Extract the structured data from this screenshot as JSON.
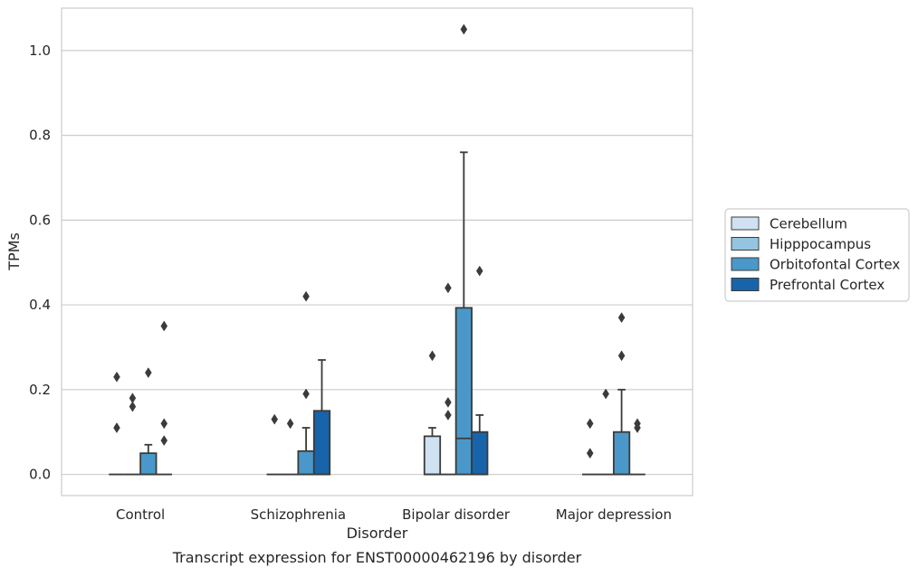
{
  "chart_data": {
    "type": "box",
    "title": "",
    "caption": "Transcript expression for ENST00000462196 by disorder",
    "xlabel": "Disorder",
    "ylabel": "TPMs",
    "ylim": [
      -0.05,
      1.1
    ],
    "yticks": [
      0.0,
      0.2,
      0.4,
      0.6,
      0.8,
      1.0
    ],
    "ytick_labels": [
      "0.0",
      "0.2",
      "0.4",
      "0.6",
      "0.8",
      "1.0"
    ],
    "grid": true,
    "legend_position": "right",
    "categories": [
      "Control",
      "Schizophrenia",
      "Bipolar disorder",
      "Major depression"
    ],
    "series": [
      {
        "name": "Cerebellum",
        "color": "#d0e1f2",
        "boxes": [
          {
            "q1": 0,
            "median": 0,
            "q3": 0,
            "whisker_low": 0,
            "whisker_high": 0,
            "outliers": [
              0.23,
              0.11
            ]
          },
          {
            "q1": 0,
            "median": 0,
            "q3": 0,
            "whisker_low": 0,
            "whisker_high": 0,
            "outliers": [
              0.13
            ]
          },
          {
            "q1": 0,
            "median": 0,
            "q3": 0.09,
            "whisker_low": 0,
            "whisker_high": 0.11,
            "outliers": [
              0.28
            ]
          },
          {
            "q1": 0,
            "median": 0,
            "q3": 0,
            "whisker_low": 0,
            "whisker_high": 0,
            "outliers": [
              0.12,
              0.05
            ]
          }
        ]
      },
      {
        "name": "Hipppocampus",
        "color": "#94c4df",
        "boxes": [
          {
            "q1": 0,
            "median": 0,
            "q3": 0,
            "whisker_low": 0,
            "whisker_high": 0,
            "outliers": [
              0.18,
              0.16
            ]
          },
          {
            "q1": 0,
            "median": 0,
            "q3": 0,
            "whisker_low": 0,
            "whisker_high": 0,
            "outliers": [
              0.12
            ]
          },
          {
            "q1": 0,
            "median": 0,
            "q3": 0,
            "whisker_low": 0,
            "whisker_high": 0,
            "outliers": [
              0.44,
              0.17,
              0.14
            ]
          },
          {
            "q1": 0,
            "median": 0,
            "q3": 0,
            "whisker_low": 0,
            "whisker_high": 0,
            "outliers": [
              0.19
            ]
          }
        ]
      },
      {
        "name": "Orbitofontal Cortex",
        "color": "#4a98c9",
        "boxes": [
          {
            "q1": 0,
            "median": 0,
            "q3": 0.05,
            "whisker_low": 0,
            "whisker_high": 0.07,
            "outliers": [
              0.24
            ]
          },
          {
            "q1": 0,
            "median": 0,
            "q3": 0.055,
            "whisker_low": 0,
            "whisker_high": 0.11,
            "outliers": [
              0.42,
              0.19
            ]
          },
          {
            "q1": 0,
            "median": 0.085,
            "q3": 0.393,
            "whisker_low": 0,
            "whisker_high": 0.76,
            "outliers": [
              1.05
            ]
          },
          {
            "q1": 0,
            "median": 0,
            "q3": 0.1,
            "whisker_low": 0,
            "whisker_high": 0.2,
            "outliers": [
              0.37,
              0.28
            ]
          }
        ]
      },
      {
        "name": "Prefrontal Cortex",
        "color": "#1764ab",
        "boxes": [
          {
            "q1": 0,
            "median": 0,
            "q3": 0,
            "whisker_low": 0,
            "whisker_high": 0,
            "outliers": [
              0.35,
              0.12,
              0.08
            ]
          },
          {
            "q1": 0,
            "median": 0,
            "q3": 0.15,
            "whisker_low": 0,
            "whisker_high": 0.27,
            "outliers": []
          },
          {
            "q1": 0,
            "median": 0,
            "q3": 0.1,
            "whisker_low": 0,
            "whisker_high": 0.14,
            "outliers": [
              0.48
            ]
          },
          {
            "q1": 0,
            "median": 0,
            "q3": 0,
            "whisker_low": 0,
            "whisker_high": 0,
            "outliers": [
              0.12,
              0.11
            ]
          }
        ]
      }
    ]
  }
}
